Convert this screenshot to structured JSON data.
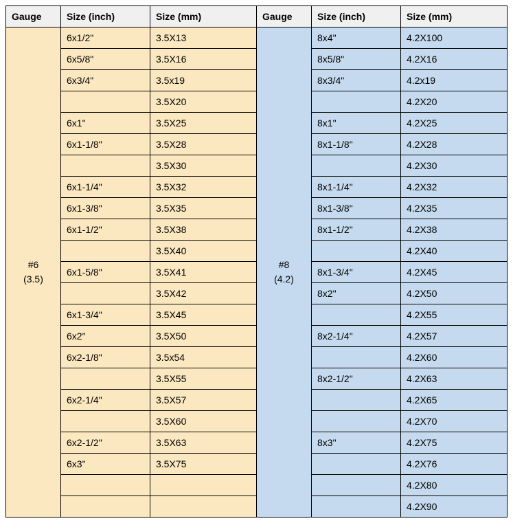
{
  "headers": {
    "gauge": "Gauge",
    "size_inch": "Size (inch)",
    "size_mm": "Size (mm)"
  },
  "left": {
    "gauge_label_line1": "#6",
    "gauge_label_line2": "(3.5)",
    "bg_color": "#fce8c0",
    "rows": [
      {
        "inch": "6x1/2\"",
        "mm": "3.5X13"
      },
      {
        "inch": "6x5/8\"",
        "mm": "3.5X16"
      },
      {
        "inch": "6x3/4\"",
        "mm": "3.5x19"
      },
      {
        "inch": "",
        "mm": "3.5X20"
      },
      {
        "inch": "6x1\"",
        "mm": "3.5X25"
      },
      {
        "inch": "6x1-1/8\"",
        "mm": "3.5X28"
      },
      {
        "inch": "",
        "mm": "3.5X30"
      },
      {
        "inch": "6x1-1/4\"",
        "mm": "3.5X32"
      },
      {
        "inch": "6x1-3/8\"",
        "mm": "3.5X35"
      },
      {
        "inch": "6x1-1/2\"",
        "mm": "3.5X38"
      },
      {
        "inch": "",
        "mm": "3.5X40"
      },
      {
        "inch": "6x1-5/8\"",
        "mm": "3.5X41"
      },
      {
        "inch": "",
        "mm": "3.5X42"
      },
      {
        "inch": "6x1-3/4\"",
        "mm": "3.5X45"
      },
      {
        "inch": "6x2\"",
        "mm": "3.5X50"
      },
      {
        "inch": "6x2-1/8\"",
        "mm": "3.5x54"
      },
      {
        "inch": "",
        "mm": "3.5X55"
      },
      {
        "inch": "6x2-1/4\"",
        "mm": "3.5X57"
      },
      {
        "inch": "",
        "mm": "3.5X60"
      },
      {
        "inch": "6x2-1/2\"",
        "mm": "3.5X63"
      },
      {
        "inch": "6x3\"",
        "mm": "3.5X75"
      },
      {
        "inch": "",
        "mm": ""
      },
      {
        "inch": "",
        "mm": ""
      }
    ]
  },
  "right": {
    "gauge_label_line1": "#8",
    "gauge_label_line2": "(4.2)",
    "bg_color": "#c5daee",
    "rows": [
      {
        "inch": "8x4\"",
        "mm": "4.2X100"
      },
      {
        "inch": "8x5/8\"",
        "mm": "4.2X16"
      },
      {
        "inch": "8x3/4\"",
        "mm": "4.2x19"
      },
      {
        "inch": "",
        "mm": "4.2X20"
      },
      {
        "inch": "8x1\"",
        "mm": "4.2X25"
      },
      {
        "inch": "8x1-1/8\"",
        "mm": "4.2X28"
      },
      {
        "inch": "",
        "mm": "4.2X30"
      },
      {
        "inch": "8x1-1/4\"",
        "mm": "4.2X32"
      },
      {
        "inch": "8x1-3/8\"",
        "mm": "4.2X35"
      },
      {
        "inch": "8x1-1/2\"",
        "mm": "4.2X38"
      },
      {
        "inch": "",
        "mm": "4.2X40"
      },
      {
        "inch": "8x1-3/4\"",
        "mm": "4.2X45"
      },
      {
        "inch": "8x2\"",
        "mm": "4.2X50"
      },
      {
        "inch": "",
        "mm": "4.2X55"
      },
      {
        "inch": "8x2-1/4\"",
        "mm": "4.2X57"
      },
      {
        "inch": "",
        "mm": "4.2X60"
      },
      {
        "inch": "8x2-1/2\"",
        "mm": "4.2X63"
      },
      {
        "inch": "",
        "mm": "4.2X65"
      },
      {
        "inch": "",
        "mm": "4.2X70"
      },
      {
        "inch": "8x3\"",
        "mm": "4.2X75"
      },
      {
        "inch": "",
        "mm": "4.2X76"
      },
      {
        "inch": "",
        "mm": "4.2X80"
      },
      {
        "inch": "",
        "mm": "4.2X90"
      }
    ]
  }
}
